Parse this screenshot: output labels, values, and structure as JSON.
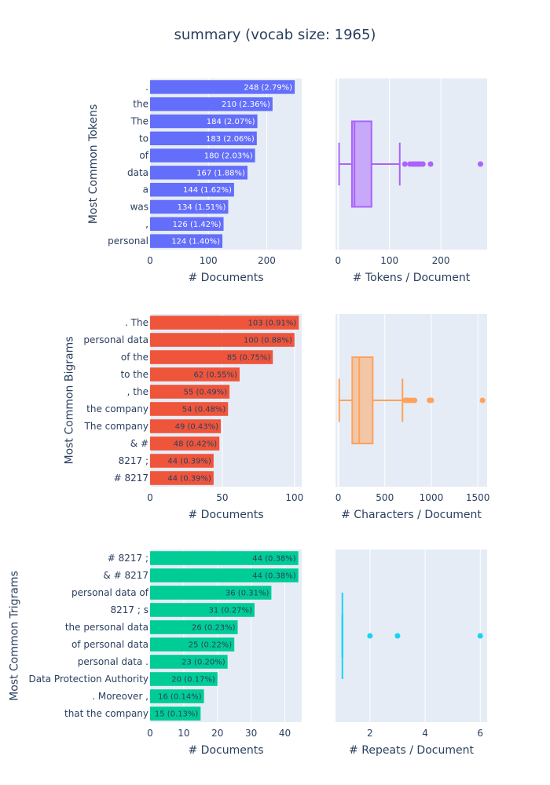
{
  "figure": {
    "title": "summary (vocab size: 1965)"
  },
  "chart_data": [
    {
      "type": "bar",
      "orientation": "horizontal",
      "color": "#636efa",
      "label_color": "#ffffff",
      "ylabel": "Most Common Tokens",
      "xlabel": "# Documents",
      "xlim": [
        0,
        260
      ],
      "xticks": [
        0,
        100,
        200
      ],
      "categories": [
        ".",
        "the",
        "The",
        "to",
        "of",
        "data",
        "a",
        "was",
        ",",
        "personal"
      ],
      "values": [
        248,
        210,
        184,
        183,
        180,
        167,
        144,
        134,
        126,
        124
      ],
      "labels": [
        "248 (2.79%)",
        "210 (2.36%)",
        "184 (2.07%)",
        "183 (2.06%)",
        "180 (2.03%)",
        "167 (1.88%)",
        "144 (1.62%)",
        "134 (1.51%)",
        "126 (1.42%)",
        "124 (1.40%)"
      ]
    },
    {
      "type": "box",
      "color": "#ab63fa",
      "fill": "rgba(171,99,250,0.5)",
      "xlabel": "# Tokens / Document",
      "xlim": [
        -5,
        290
      ],
      "xticks": [
        0,
        100,
        200
      ],
      "stats": {
        "min": 2,
        "q1": 27,
        "median": 32,
        "q3": 65,
        "max": 120
      },
      "outliers": [
        130,
        140,
        145,
        148,
        152,
        156,
        160,
        165,
        180,
        277
      ]
    },
    {
      "type": "bar",
      "orientation": "horizontal",
      "color": "#ef553b",
      "label_color": "#2a3f5f",
      "ylabel": "Most Common Bigrams",
      "xlabel": "# Documents",
      "xlim": [
        0,
        105
      ],
      "xticks": [
        0,
        50,
        100
      ],
      "categories": [
        ". The",
        "personal data",
        "of the",
        "to the",
        ", the",
        "the company",
        "The company",
        "& #",
        "8217 ;",
        "# 8217"
      ],
      "values": [
        103,
        100,
        85,
        62,
        55,
        54,
        49,
        48,
        44,
        44
      ],
      "labels": [
        "103 (0.91%)",
        "100 (0.88%)",
        "85 (0.75%)",
        "62 (0.55%)",
        "55 (0.49%)",
        "54 (0.48%)",
        "49 (0.43%)",
        "48 (0.42%)",
        "44 (0.39%)",
        "44 (0.39%)"
      ]
    },
    {
      "type": "box",
      "color": "#ffa15a",
      "fill": "rgba(255,161,90,0.5)",
      "xlabel": "# Characters / Document",
      "xlim": [
        -30,
        1600
      ],
      "xticks": [
        0,
        500,
        1000,
        1500
      ],
      "stats": {
        "min": 10,
        "q1": 150,
        "median": 225,
        "q3": 370,
        "max": 690
      },
      "outliers": [
        720,
        740,
        760,
        790,
        820,
        980,
        1000,
        1550
      ]
    },
    {
      "type": "bar",
      "orientation": "horizontal",
      "color": "#00cc96",
      "label_color": "#2a3f5f",
      "ylabel": "Most Common Trigrams",
      "xlabel": "# Documents",
      "xlim": [
        0,
        45
      ],
      "xticks": [
        0,
        10,
        20,
        30,
        40
      ],
      "categories": [
        "# 8217 ;",
        "& # 8217",
        "personal data of",
        "8217 ; s",
        "the personal data",
        "of personal data",
        "personal data .",
        "Data Protection Authority",
        ". Moreover ,",
        "that the company"
      ],
      "values": [
        44,
        44,
        36,
        31,
        26,
        25,
        23,
        20,
        16,
        15
      ],
      "labels": [
        "44 (0.38%)",
        "44 (0.38%)",
        "36 (0.31%)",
        "31 (0.27%)",
        "26 (0.23%)",
        "25 (0.22%)",
        "23 (0.20%)",
        "20 (0.17%)",
        "16 (0.14%)",
        "15 (0.13%)"
      ]
    },
    {
      "type": "box",
      "color": "#19d3f3",
      "fill": "rgba(25,211,243,0.5)",
      "xlabel": "# Repeats / Document",
      "xlim": [
        0.75,
        6.25
      ],
      "xticks": [
        2,
        4,
        6
      ],
      "stats": {
        "min": 1,
        "q1": 1,
        "median": 1,
        "q3": 1,
        "max": 1
      },
      "outliers": [
        2,
        3,
        6
      ]
    }
  ]
}
